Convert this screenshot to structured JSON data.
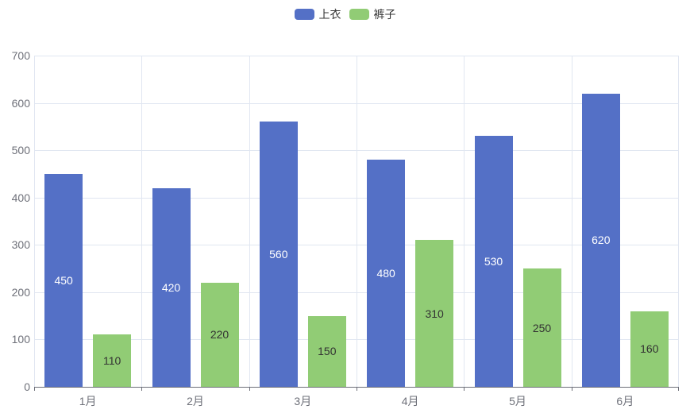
{
  "chart_data": {
    "type": "bar",
    "title": "",
    "categories": [
      "1月",
      "2月",
      "3月",
      "4月",
      "5月",
      "6月"
    ],
    "series": [
      {
        "name": "上衣",
        "slug": "tops",
        "values": [
          450,
          420,
          560,
          480,
          530,
          620
        ],
        "color": "#5470c6",
        "label_color": "#ffffff"
      },
      {
        "name": "裤子",
        "slug": "pants",
        "values": [
          110,
          220,
          150,
          310,
          250,
          160
        ],
        "color": "#91cc75",
        "label_color": "#333333"
      }
    ],
    "xlabel": "",
    "ylabel": "",
    "ylim": [
      0,
      700
    ],
    "y_tick_step": 100,
    "y_tick_labels": [
      "0",
      "100",
      "200",
      "300",
      "400",
      "500",
      "600",
      "700"
    ],
    "grid": true,
    "bar_labels_inside": true,
    "legend_position": "top-center"
  },
  "colors": {
    "background": "#ffffff",
    "grid_line": "#e0e6f1",
    "axis_line": "#6e7079",
    "axis_label": "#6e7079",
    "legend_text": "#333333"
  }
}
